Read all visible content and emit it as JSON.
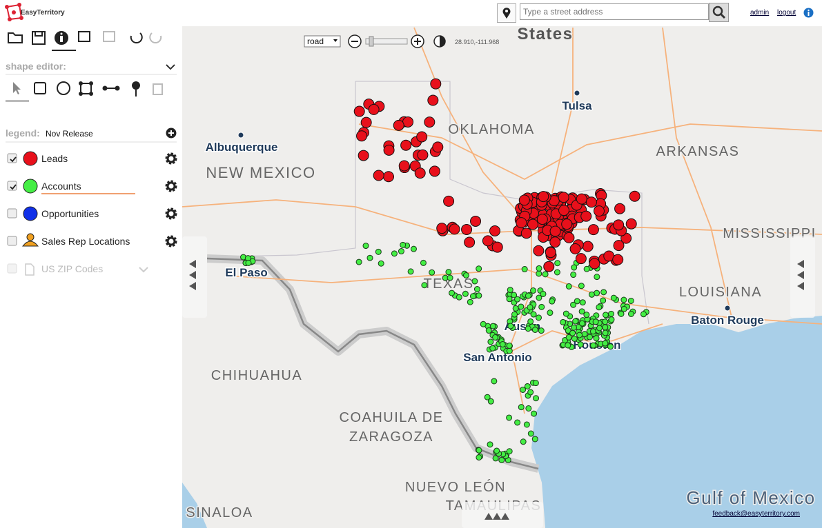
{
  "header": {
    "logo": "EasyTerritory",
    "address_placeholder": "Type a street address",
    "admin": "admin",
    "logout": "logout"
  },
  "shape_editor": {
    "title": "shape editor:"
  },
  "legend": {
    "label": "legend:",
    "name": "Nov Release",
    "layers": [
      {
        "name": "Leads"
      },
      {
        "name": "Accounts"
      },
      {
        "name": "Opportunities"
      },
      {
        "name": "Sales Rep Locations"
      },
      {
        "name": "US ZIP Codes"
      }
    ]
  },
  "map": {
    "style": "road",
    "coords": "28.910,-111.968",
    "cities": [
      "Tulsa",
      "Albuquerque",
      "El Paso",
      "Baton Rouge",
      "Austin",
      "Houston",
      "San Antonio"
    ],
    "regions": [
      "States",
      "OKLAHOMA",
      "NEW MEXICO",
      "ARKANSAS",
      "MISSISSIPPI",
      "TEXAS",
      "LOUISIANA",
      "CHIHUAHUA",
      "COAHUILA DE",
      "ZARAGOZA",
      "NUEVO LEÓN",
      "TAMAULIPAS",
      "SINALOA",
      "Gulf of Mexico"
    ],
    "feedback": "feedback@easyterritory.com"
  }
}
